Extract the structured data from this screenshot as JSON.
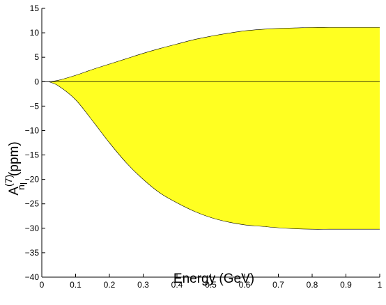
{
  "chart_data": {
    "type": "area",
    "title": "",
    "xlabel": "Energy (GeV)",
    "ylabel": {
      "base": "A",
      "superscript": "(7)",
      "subscript": "n",
      "sub_subscript": "l",
      "unit": "(ppm)"
    },
    "xlim": [
      0,
      1
    ],
    "ylim": [
      -40,
      15
    ],
    "xticks": [
      0,
      0.1,
      0.2,
      0.3,
      0.4,
      0.5,
      0.6,
      0.7,
      0.8,
      0.9,
      1
    ],
    "xtick_labels": [
      "0",
      "0.1",
      "0.2",
      "0.3",
      "0.4",
      "0.5",
      "0.6",
      "0.7",
      "0.8",
      "0.9",
      "1"
    ],
    "yticks": [
      -40,
      -35,
      -30,
      -25,
      -20,
      -15,
      -10,
      -5,
      0,
      5,
      10,
      15
    ],
    "ytick_labels": [
      "−40",
      "−35",
      "−30",
      "−25",
      "−20",
      "−15",
      "−10",
      "−5",
      "0",
      "5",
      "10",
      "15"
    ],
    "grid": false,
    "fill_color": "#ffff21",
    "edge_color": "#000000",
    "zero_line": true,
    "band": {
      "x": [
        0.02,
        0.05,
        0.1,
        0.15,
        0.2,
        0.25,
        0.3,
        0.35,
        0.4,
        0.45,
        0.5,
        0.55,
        0.6,
        0.65,
        0.7,
        0.75,
        0.8,
        0.85,
        0.9,
        0.95,
        1.0
      ],
      "upper": [
        0,
        0.3,
        1.3,
        2.5,
        3.6,
        4.7,
        5.8,
        6.8,
        7.7,
        8.6,
        9.3,
        9.9,
        10.4,
        10.7,
        10.9,
        11.0,
        11.1,
        11.1,
        11.1,
        11.1,
        11.1
      ],
      "lower": [
        0,
        -0.9,
        -3.7,
        -8.0,
        -12.5,
        -16.6,
        -20.0,
        -22.8,
        -24.8,
        -26.5,
        -27.8,
        -28.7,
        -29.3,
        -29.6,
        -29.9,
        -30.1,
        -30.2,
        -30.2,
        -30.2,
        -30.2,
        -30.2
      ]
    }
  }
}
